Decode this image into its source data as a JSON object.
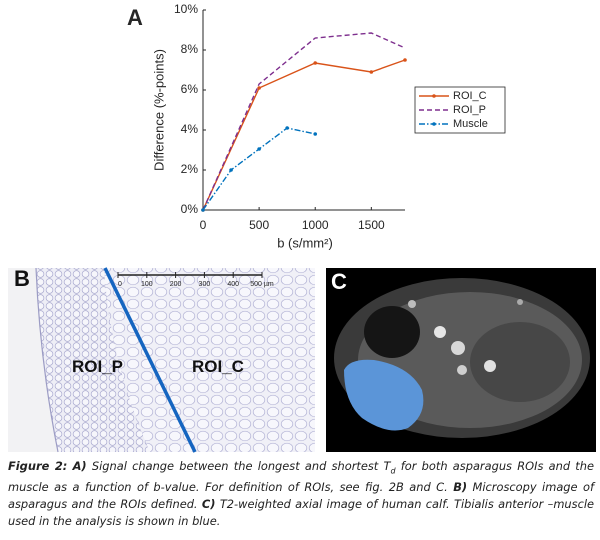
{
  "figure": {
    "panel_a_label": "A",
    "panel_b_label": "B",
    "panel_c_label": "C",
    "panel_b": {
      "scale_labels": [
        "0",
        "100",
        "200",
        "300",
        "400",
        "500 µm"
      ],
      "roi_p": "ROI_P",
      "roi_c": "ROI_C"
    },
    "caption": {
      "label": "Figure 2:",
      "a_tag": "A)",
      "a_text_1": " Signal change between the longest and shortest T",
      "a_sub": "d",
      "a_text_2": " for both asparagus ROIs and the muscle as a function of b-value. For definition of ROIs, see fig. 2B and C. ",
      "b_tag": "B)",
      "b_text": " Microscopy image of asparagus and the ROIs defined. ",
      "c_tag": "C)",
      "c_text": " T2-weighted axial image of human calf. Tibialis anterior –muscle used in the analysis is shown in blue."
    }
  },
  "chart_data": {
    "type": "line",
    "x_label": "b (s/mm²)",
    "y_label": "Difference (%-points)",
    "xlim": [
      0,
      1800
    ],
    "xticks": [
      0,
      500,
      1000,
      1500
    ],
    "ylim": [
      0,
      10
    ],
    "yticks": [
      {
        "value": 0,
        "label": "0%"
      },
      {
        "value": 2,
        "label": "2%"
      },
      {
        "value": 4,
        "label": "4%"
      },
      {
        "value": 6,
        "label": "6%"
      },
      {
        "value": 8,
        "label": "8%"
      },
      {
        "value": 10,
        "label": "10%"
      }
    ],
    "legend": "right",
    "series": [
      {
        "name": "ROI_C",
        "color": "#d95319",
        "dash": "solid",
        "x": [
          0,
          500,
          1000,
          1500,
          1800
        ],
        "values": [
          0,
          6.1,
          7.35,
          6.9,
          7.5
        ]
      },
      {
        "name": "ROI_P",
        "color": "#7e2f8e",
        "dash": "dashed",
        "x": [
          0,
          500,
          1000,
          1500,
          1800
        ],
        "values": [
          0,
          6.3,
          8.6,
          8.85,
          8.1
        ]
      },
      {
        "name": "Muscle",
        "color": "#0072bd",
        "dash": "dashdot",
        "x": [
          0,
          250,
          500,
          750,
          1000
        ],
        "values": [
          0,
          2.0,
          3.05,
          4.1,
          3.8
        ]
      }
    ]
  }
}
